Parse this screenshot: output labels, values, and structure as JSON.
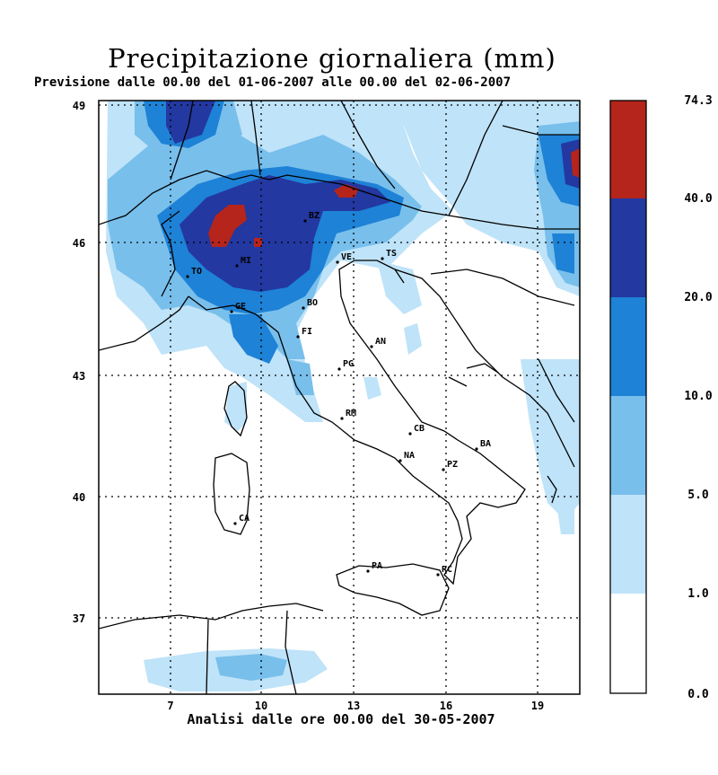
{
  "title": "Precipitazione giornaliera (mm)",
  "subtitle": "Previsione dalle 00.00 del 01-06-2007 alle 00.00 del 02-06-2007",
  "footer": "Analisi dalle ore 00.00 del 30-05-2007",
  "axes": {
    "lon_ticks": [
      "7",
      "10",
      "13",
      "16",
      "19"
    ],
    "lat_ticks": [
      "49",
      "46",
      "43",
      "40",
      "37"
    ]
  },
  "legend": {
    "levels": [
      "74.3",
      "40.0",
      "20.0",
      "10.0",
      "5.0",
      "1.0",
      "0.0"
    ],
    "colors": [
      "#b5251b",
      "#2338a0",
      "#1e82d6",
      "#78bfec",
      "#bfe3f8",
      "#ffffff"
    ]
  },
  "cities": [
    {
      "code": "BZ"
    },
    {
      "code": "MI"
    },
    {
      "code": "TO"
    },
    {
      "code": "GE"
    },
    {
      "code": "BO"
    },
    {
      "code": "FI"
    },
    {
      "code": "TS"
    },
    {
      "code": "VE"
    },
    {
      "code": "AN"
    },
    {
      "code": "PG"
    },
    {
      "code": "RM"
    },
    {
      "code": "CB"
    },
    {
      "code": "NA"
    },
    {
      "code": "BA"
    },
    {
      "code": "PZ"
    },
    {
      "code": "CA"
    },
    {
      "code": "PA"
    },
    {
      "code": "RC"
    }
  ]
}
